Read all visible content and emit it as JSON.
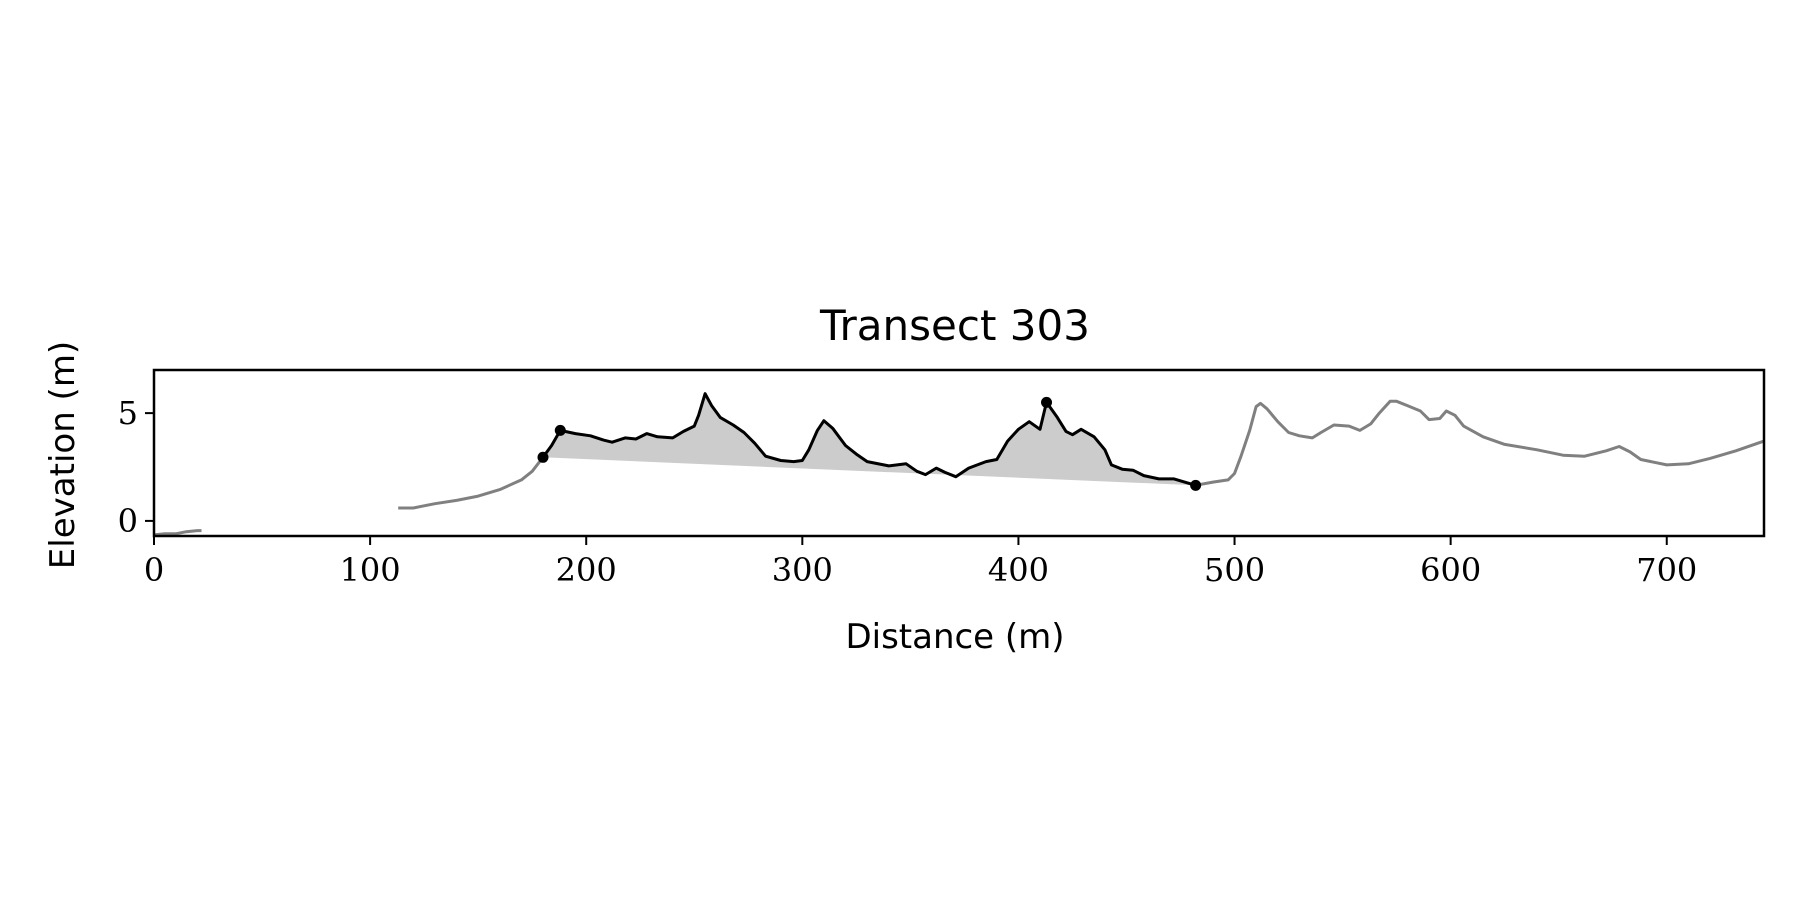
{
  "chart_data": {
    "type": "line",
    "title": "Transect 303",
    "xlabel": "Distance (m)",
    "ylabel": "Elevation (m)",
    "xlim": [
      0,
      745
    ],
    "ylim": [
      -0.7,
      7.0
    ],
    "xticks": [
      0,
      100,
      200,
      300,
      400,
      500,
      600,
      700
    ],
    "yticks": [
      0,
      5
    ],
    "grid": false,
    "colors": {
      "profile": "#808080",
      "dune": "#000000",
      "fill": "#cccccc",
      "markers": "#000000"
    },
    "series": [
      {
        "role": "profile",
        "segments": [
          [
            [
              0,
              -0.65
            ],
            [
              5,
              -0.6
            ],
            [
              10,
              -0.6
            ],
            [
              15,
              -0.5
            ],
            [
              20,
              -0.45
            ],
            [
              22,
              -0.45
            ]
          ],
          [
            [
              113,
              0.6
            ],
            [
              120,
              0.6
            ],
            [
              125,
              0.7
            ],
            [
              130,
              0.8
            ],
            [
              140,
              0.95
            ],
            [
              150,
              1.15
            ],
            [
              160,
              1.45
            ],
            [
              170,
              1.9
            ],
            [
              175,
              2.3
            ],
            [
              180,
              2.95
            ]
          ],
          [
            [
              482,
              1.65
            ],
            [
              490,
              1.8
            ],
            [
              497,
              1.9
            ],
            [
              500,
              2.2
            ],
            [
              503,
              3.0
            ],
            [
              507,
              4.2
            ],
            [
              510,
              5.3
            ],
            [
              512,
              5.45
            ],
            [
              515,
              5.2
            ],
            [
              520,
              4.6
            ],
            [
              525,
              4.1
            ],
            [
              530,
              3.95
            ],
            [
              536,
              3.85
            ],
            [
              540,
              4.1
            ],
            [
              546,
              4.45
            ],
            [
              553,
              4.4
            ],
            [
              558,
              4.2
            ],
            [
              563,
              4.5
            ],
            [
              567,
              5.0
            ],
            [
              572,
              5.55
            ],
            [
              575,
              5.55
            ],
            [
              580,
              5.35
            ],
            [
              586,
              5.1
            ],
            [
              590,
              4.7
            ],
            [
              595,
              4.75
            ],
            [
              598,
              5.1
            ],
            [
              602,
              4.9
            ],
            [
              606,
              4.4
            ],
            [
              615,
              3.9
            ],
            [
              625,
              3.55
            ],
            [
              640,
              3.3
            ],
            [
              652,
              3.05
            ],
            [
              662,
              3.0
            ],
            [
              672,
              3.25
            ],
            [
              678,
              3.45
            ],
            [
              683,
              3.2
            ],
            [
              688,
              2.85
            ],
            [
              700,
              2.6
            ],
            [
              710,
              2.65
            ],
            [
              720,
              2.9
            ],
            [
              732,
              3.25
            ],
            [
              745,
              3.7
            ]
          ]
        ]
      },
      {
        "role": "dune",
        "points": [
          [
            180,
            2.95
          ],
          [
            184,
            3.5
          ],
          [
            188,
            4.2
          ],
          [
            195,
            4.05
          ],
          [
            202,
            3.95
          ],
          [
            208,
            3.75
          ],
          [
            212,
            3.65
          ],
          [
            218,
            3.85
          ],
          [
            223,
            3.8
          ],
          [
            228,
            4.05
          ],
          [
            233,
            3.9
          ],
          [
            240,
            3.85
          ],
          [
            245,
            4.15
          ],
          [
            250,
            4.4
          ],
          [
            252,
            4.9
          ],
          [
            255,
            5.9
          ],
          [
            258,
            5.35
          ],
          [
            262,
            4.8
          ],
          [
            268,
            4.45
          ],
          [
            273,
            4.1
          ],
          [
            278,
            3.6
          ],
          [
            283,
            3.0
          ],
          [
            290,
            2.8
          ],
          [
            296,
            2.75
          ],
          [
            300,
            2.8
          ],
          [
            303,
            3.3
          ],
          [
            307,
            4.2
          ],
          [
            310,
            4.65
          ],
          [
            314,
            4.3
          ],
          [
            320,
            3.5
          ],
          [
            325,
            3.1
          ],
          [
            330,
            2.75
          ],
          [
            340,
            2.55
          ],
          [
            348,
            2.65
          ],
          [
            353,
            2.3
          ],
          [
            357,
            2.15
          ],
          [
            362,
            2.45
          ],
          [
            366,
            2.25
          ],
          [
            371,
            2.05
          ],
          [
            377,
            2.45
          ],
          [
            385,
            2.75
          ],
          [
            390,
            2.85
          ],
          [
            395,
            3.7
          ],
          [
            400,
            4.25
          ],
          [
            405,
            4.6
          ],
          [
            410,
            4.25
          ],
          [
            413,
            5.5
          ],
          [
            418,
            4.8
          ],
          [
            422,
            4.15
          ],
          [
            425,
            4.0
          ],
          [
            429,
            4.25
          ],
          [
            435,
            3.9
          ],
          [
            440,
            3.3
          ],
          [
            443,
            2.6
          ],
          [
            448,
            2.4
          ],
          [
            453,
            2.35
          ],
          [
            458,
            2.1
          ],
          [
            465,
            1.95
          ],
          [
            472,
            1.95
          ],
          [
            482,
            1.65
          ]
        ]
      },
      {
        "role": "fill-baseline",
        "points": [
          [
            180,
            2.95
          ],
          [
            482,
            1.65
          ]
        ]
      },
      {
        "role": "markers",
        "points": [
          [
            180,
            2.95
          ],
          [
            188,
            4.2
          ],
          [
            413,
            5.5
          ],
          [
            482,
            1.65
          ]
        ]
      }
    ]
  }
}
